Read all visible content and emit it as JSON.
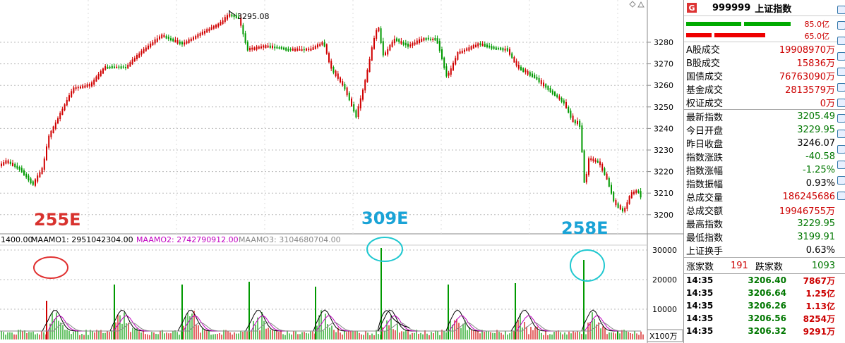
{
  "chart": {
    "high_label": "3295.08",
    "y_ticks": [
      "3280",
      "3270",
      "3260",
      "3250",
      "3240",
      "3230",
      "3220",
      "3210",
      "3200"
    ],
    "vol_ticks": [
      "30000",
      "20000",
      "10000"
    ],
    "vol_unit": "X100万",
    "ma_line": {
      "prefix": "1400.00",
      "m1": "MAAMO1: 2951042304.00",
      "m2": "MAAMO2: 2742790912.00",
      "m3": "MAAMO3: 3104680704.00"
    },
    "annotations": [
      {
        "text": "255E",
        "color": "#d8322e"
      },
      {
        "text": "309E",
        "color": "#1aa3d6"
      },
      {
        "text": "258E",
        "color": "#1aa3d6"
      }
    ],
    "colors": {
      "up": "#d00000",
      "down": "#009900",
      "ma1": "#000000",
      "ma2": "#c000c0",
      "ma3": "#888888",
      "circle_red": "#e03030",
      "circle_cyan": "#20c8d0"
    }
  },
  "panel": {
    "badge": "G",
    "code": "999999",
    "name": "上证指数",
    "bar_top_value": "85.0亿",
    "bar_bottom_value": "65.0亿",
    "stats": [
      {
        "label": "A股成交",
        "value": "19908970万",
        "color": "red"
      },
      {
        "label": "B股成交",
        "value": "15836万",
        "color": "red"
      },
      {
        "label": "国债成交",
        "value": "76763090万",
        "color": "red"
      },
      {
        "label": "基金成交",
        "value": "2813579万",
        "color": "red"
      },
      {
        "label": "权证成交",
        "value": "0万",
        "color": "red"
      }
    ],
    "index": [
      {
        "label": "最新指数",
        "value": "3205.49",
        "color": "green"
      },
      {
        "label": "今日开盘",
        "value": "3229.95",
        "color": "green"
      },
      {
        "label": "昨日收盘",
        "value": "3246.07",
        "color": "black"
      },
      {
        "label": "指数涨跌",
        "value": "-40.58",
        "color": "green"
      },
      {
        "label": "指数涨幅",
        "value": "-1.25%",
        "color": "green"
      },
      {
        "label": "指数振幅",
        "value": "0.93%",
        "color": "black"
      },
      {
        "label": "总成交量",
        "value": "186245686",
        "color": "red"
      },
      {
        "label": "总成交额",
        "value": "19946755万",
        "color": "red"
      },
      {
        "label": "最高指数",
        "value": "3229.95",
        "color": "green"
      },
      {
        "label": "最低指数",
        "value": "3199.91",
        "color": "green"
      },
      {
        "label": "上证换手",
        "value": "0.63%",
        "color": "black"
      }
    ],
    "up_label": "涨家数",
    "up_count": "191",
    "down_label": "跌家数",
    "down_count": "1093",
    "ticks": [
      {
        "time": "14:35",
        "price": "3206.40",
        "vol": "7867万"
      },
      {
        "time": "14:35",
        "price": "3206.64",
        "vol": "1.25亿"
      },
      {
        "time": "14:35",
        "price": "3206.26",
        "vol": "1.13亿"
      },
      {
        "time": "14:35",
        "price": "3206.56",
        "vol": "8254万"
      },
      {
        "time": "14:35",
        "price": "3206.32",
        "vol": "9291万"
      }
    ]
  }
}
